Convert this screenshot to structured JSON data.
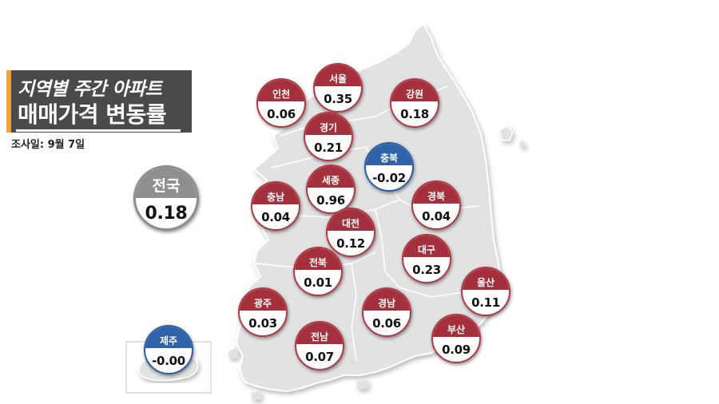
{
  "title": {
    "line1": "지역별 주간 아파트",
    "line2": "매매가격 변동률",
    "survey_date": "조사일: 9월 7일"
  },
  "colors": {
    "increase": "#a3303a",
    "decrease": "#2f62a8",
    "national": "#8f8f8f",
    "map_fill": "#e2e2e2",
    "accent": "#f2a33a"
  },
  "national": {
    "name": "전국",
    "value": "0.18"
  },
  "regions": [
    {
      "id": "incheon",
      "name": "인천",
      "value": "0.06",
      "trend": "up"
    },
    {
      "id": "seoul",
      "name": "서울",
      "value": "0.35",
      "trend": "up"
    },
    {
      "id": "gangwon",
      "name": "강원",
      "value": "0.18",
      "trend": "up"
    },
    {
      "id": "gyeonggi",
      "name": "경기",
      "value": "0.21",
      "trend": "up"
    },
    {
      "id": "chungbuk",
      "name": "충북",
      "value": "-0.02",
      "trend": "down"
    },
    {
      "id": "sejong",
      "name": "세종",
      "value": "0.96",
      "trend": "up"
    },
    {
      "id": "chungnam",
      "name": "충남",
      "value": "0.04",
      "trend": "up"
    },
    {
      "id": "gyeongbuk",
      "name": "경북",
      "value": "0.04",
      "trend": "up"
    },
    {
      "id": "daejeon",
      "name": "대전",
      "value": "0.12",
      "trend": "up"
    },
    {
      "id": "daegu",
      "name": "대구",
      "value": "0.23",
      "trend": "up"
    },
    {
      "id": "jeonbuk",
      "name": "전북",
      "value": "0.01",
      "trend": "up"
    },
    {
      "id": "ulsan",
      "name": "울산",
      "value": "0.11",
      "trend": "up"
    },
    {
      "id": "gwangju",
      "name": "광주",
      "value": "0.03",
      "trend": "up"
    },
    {
      "id": "gyeongnam",
      "name": "경남",
      "value": "0.06",
      "trend": "up"
    },
    {
      "id": "busan",
      "name": "부산",
      "value": "0.09",
      "trend": "up"
    },
    {
      "id": "jeonnam",
      "name": "전남",
      "value": "0.07",
      "trend": "up"
    },
    {
      "id": "jeju",
      "name": "제주",
      "value": "-0.00",
      "trend": "down"
    }
  ]
}
